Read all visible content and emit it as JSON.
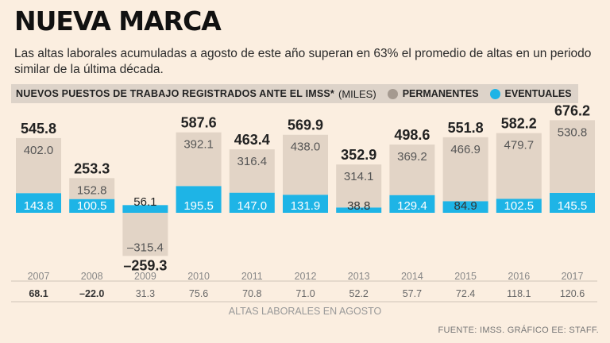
{
  "header": {
    "title": "NUEVA MARCA",
    "subtitle": "Las altas laborales acumuladas a agosto de este año superan en 63% el promedio de altas en un periodo similar de la última década."
  },
  "legend": {
    "heading": "NUEVOS PUESTOS DE TRABAJO REGISTRADOS ANTE EL IMSS*",
    "units": "(MILES)",
    "permanent_label": "PERMANENTES",
    "eventual_label": "EVENTUALES"
  },
  "colors": {
    "permanent": "#e2d4c6",
    "eventual": "#1eb4e6",
    "permanent_dot": "#a59a90",
    "background": "#fbeee0"
  },
  "chart_data": {
    "type": "bar",
    "stacked": true,
    "categories": [
      "2007",
      "2008",
      "2009",
      "2010",
      "2011",
      "2012",
      "2013",
      "2014",
      "2015",
      "2016",
      "2017"
    ],
    "series": [
      {
        "name": "PERMANENTES",
        "values": [
          402.0,
          152.8,
          -315.4,
          392.1,
          316.4,
          438.0,
          314.1,
          369.2,
          466.9,
          479.7,
          530.8
        ]
      },
      {
        "name": "EVENTUALES",
        "values": [
          143.8,
          100.5,
          56.1,
          195.5,
          147.0,
          131.9,
          38.8,
          129.4,
          84.9,
          102.5,
          145.5
        ]
      }
    ],
    "totals": [
      545.8,
      253.3,
      -259.3,
      587.6,
      463.4,
      569.9,
      352.9,
      498.6,
      551.8,
      582.2,
      676.2
    ],
    "permanent_labels": [
      "402.0",
      "152.8",
      "–315.4",
      "392.1",
      "316.4",
      "438.0",
      "314.1",
      "369.2",
      "466.9",
      "479.7",
      "530.8"
    ],
    "eventual_labels": [
      "143.8",
      "100.5",
      "56.1",
      "195.5",
      "147.0",
      "131.9",
      "38.8",
      "129.4",
      "84.9",
      "102.5",
      "145.5"
    ],
    "total_labels": [
      "545.8",
      "253.3",
      "–259.3",
      "587.6",
      "463.4",
      "569.9",
      "352.9",
      "498.6",
      "551.8",
      "582.2",
      "676.2"
    ],
    "altas_agosto": [
      "68.1",
      "–22.0",
      "31.3",
      "75.6",
      "70.8",
      "71.0",
      "52.2",
      "57.7",
      "72.4",
      "118.1",
      "120.6"
    ],
    "altas_bold": [
      true,
      true,
      false,
      false,
      false,
      false,
      false,
      false,
      false,
      false,
      false
    ],
    "altas_label": "ALTAS LABORALES EN AGOSTO",
    "ylim": [
      -315.4,
      676.2
    ]
  },
  "footer": {
    "source": "FUENTE: IMSS. GRÁFICO EE: STAFF."
  }
}
